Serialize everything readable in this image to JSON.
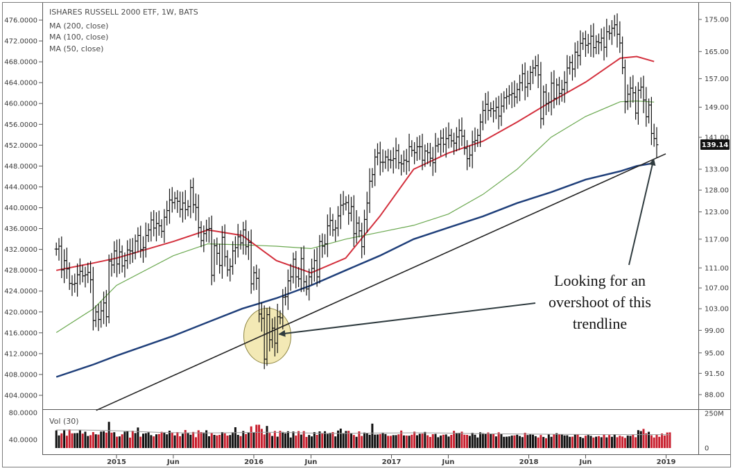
{
  "chart_data": {
    "type": "line",
    "title": "ISHARES RUSSELL 2000 ETF, 1W, BATS",
    "legend": [
      "MA (200, close)",
      "MA (100, close)",
      "MA (50, close)"
    ],
    "volume_label": "Vol (30)",
    "annotation": [
      "Looking for an",
      "overshoot of this",
      "trendline"
    ],
    "last_price_label": "139.14",
    "colors": {
      "price_bars": "#111111",
      "ma50": "#d32f3c",
      "ma100": "#6aa84f",
      "ma200": "#1f3f7a",
      "trendline": "#222222",
      "highlight_fill": "#f3e9b5",
      "vol_up": "#111111",
      "vol_down": "#c8202f",
      "last_price_tag": "#111111"
    },
    "x_tick_labels": [
      "2015",
      "Jun",
      "2016",
      "Jun",
      "2017",
      "Jun",
      "2018",
      "Jun",
      "2019"
    ],
    "x_tick_dates": [
      "2015-01-01",
      "2015-06-01",
      "2016-01-01",
      "2016-06-01",
      "2017-01-01",
      "2017-06-01",
      "2018-01-01",
      "2018-06-01",
      "2019-01-01"
    ],
    "left_axis_ticks": [
      "476.0000",
      "472.0000",
      "468.0000",
      "464.0000",
      "460.0000",
      "456.0000",
      "452.0000",
      "448.0000",
      "444.0000",
      "440.0000",
      "436.0000",
      "432.0000",
      "428.0000",
      "424.0000",
      "420.0000",
      "416.0000",
      "412.0000",
      "408.0000",
      "404.0000"
    ],
    "right_axis_ticks": [
      "175.00",
      "165.00",
      "157.00",
      "149.00",
      "141.00",
      "133.00",
      "128.00",
      "123.00",
      "117.00",
      "111.00",
      "107.00",
      "103.00",
      "99.00",
      "95.00",
      "91.50",
      "88.00"
    ],
    "right_axis_scale": "log",
    "volume_left_ticks": [
      "80.0000",
      "40.0000"
    ],
    "volume_right_ticks": [
      "250M",
      "0"
    ],
    "y_range": [
      85.5,
      177.5
    ],
    "price_series_weekly": {
      "start": "2014-07-25",
      "interval": "1W",
      "close": [
        114.9,
        115.5,
        110.6,
        112.5,
        110.8,
        107.9,
        107.7,
        107.9,
        109.6,
        110.3,
        109.4,
        109.6,
        110.1,
        108.6,
        100.8,
        102.4,
        101.0,
        102.6,
        104.1,
        101.5,
        112.4,
        111.6,
        114.5,
        111.8,
        114.3,
        111.4,
        112.5,
        114.7,
        114.5,
        114.1,
        116.6,
        117.8,
        114.8,
        115.2,
        117.8,
        119.0,
        121.2,
        119.4,
        120.4,
        119.9,
        118.7,
        121.8,
        123.3,
        125.7,
        125.1,
        126.1,
        125.4,
        123.6,
        125.0,
        123.5,
        124.2,
        128.6,
        124.6,
        124.0,
        119.5,
        116.7,
        118.2,
        119.1,
        119.3,
        109.5,
        115.6,
        114.0,
        111.5,
        117.4,
        113.3,
        110.6,
        111.3,
        114.5,
        115.2,
        117.5,
        116.2,
        119.0,
        115.4,
        116.3,
        107.8,
        110.0,
        108.9,
        102.0,
        101.2,
        93.9,
        101.9,
        97.3,
        99.4,
        96.7,
        101.5,
        101.3,
        105.2,
        105.3,
        108.4,
        109.2,
        112.8,
        109.2,
        108.8,
        112.9,
        108.2,
        106.8,
        109.2,
        110.9,
        112.5,
        109.2,
        116.5,
        115.5,
        116.0,
        119.9,
        121.1,
        119.0,
        119.4,
        122.1,
        124.5,
        124.8,
        125.1,
        122.7,
        124.2,
        118.2,
        120.5,
        118.8,
        115.4,
        121.3,
        125.0,
        130.1,
        131.7,
        136.0,
        137.0,
        134.7,
        134.7,
        136.0,
        135.3,
        135.2,
        135.6,
        137.6,
        134.6,
        134.3,
        135.2,
        134.9,
        138.6,
        137.7,
        137.1,
        138.6,
        138.6,
        135.2,
        137.5,
        137.1,
        135.7,
        134.6,
        138.8,
        139.2,
        140.8,
        139.2,
        140.7,
        141.5,
        140.1,
        139.5,
        141.1,
        142.8,
        141.3,
        138.2,
        135.6,
        136.5,
        139.8,
        140.2,
        141.5,
        145.0,
        148.1,
        149.8,
        148.1,
        148.6,
        148.0,
        149.0,
        146.6,
        149.3,
        151.6,
        152.0,
        152.4,
        152.8,
        151.8,
        153.9,
        155.8,
        158.4,
        154.6,
        155.6,
        158.8,
        160.1,
        160.8,
        158.1,
        145.9,
        153.2,
        150.0,
        150.4,
        155.7,
        151.4,
        155.2,
        152.8,
        153.9,
        155.9,
        160.1,
        161.7,
        159.8,
        164.8,
        163.8,
        167.5,
        168.9,
        166.9,
        167.4,
        169.7,
        166.2,
        168.0,
        167.7,
        169.1,
        166.3,
        171.1,
        170.6,
        172.2,
        173.3,
        170.3,
        167.6,
        160.2,
        150.5,
        152.6,
        154.3,
        153.0,
        147.4,
        153.7,
        154.6,
        151.0,
        146.4,
        149.6,
        142.0,
        140.7,
        139.1
      ]
    },
    "moving_averages": {
      "t": [
        "2014-07-25",
        "2014-11-01",
        "2015-01-01",
        "2015-06-01",
        "2015-09-01",
        "2015-12-01",
        "2016-03-01",
        "2016-06-01",
        "2016-09-01",
        "2016-12-01",
        "2017-03-01",
        "2017-06-01",
        "2017-09-01",
        "2017-12-01",
        "2018-03-01",
        "2018-06-01",
        "2018-09-01",
        "2018-10-15",
        "2018-11-30"
      ],
      "MA (50, close)": [
        110.5,
        112.0,
        113.0,
        116.5,
        119.0,
        117.8,
        112.5,
        110.0,
        113.0,
        122.0,
        133.0,
        137.0,
        140.0,
        145.0,
        150.5,
        156.0,
        163.0,
        163.5,
        162.0
      ],
      "MA (100, close)": [
        98.6,
        103.0,
        107.5,
        113.5,
        116.0,
        115.8,
        115.5,
        115.0,
        117.0,
        118.5,
        120.0,
        122.5,
        127.0,
        133.0,
        141.0,
        146.5,
        150.5,
        150.7,
        150.4
      ],
      "MA (200, close)": [
        90.9,
        93.0,
        94.5,
        98.0,
        100.5,
        103.0,
        105.0,
        107.5,
        110.5,
        113.5,
        117.0,
        119.5,
        122.0,
        125.0,
        127.5,
        130.5,
        132.5,
        133.8,
        134.5
      ]
    },
    "trendline": {
      "t": [
        "2014-11-08",
        "2018-12-31"
      ],
      "y": [
        85.5,
        136.8
      ]
    },
    "highlight_circle_center": {
      "t": "2016-02-06",
      "y": 98.0
    },
    "arrow_targets": [
      {
        "t": "2016-03-08",
        "y": 98.3
      },
      {
        "t": "2018-11-29",
        "y": 135.5
      }
    ],
    "volume_M": [
      127,
      91,
      106,
      133,
      89,
      134,
      106,
      107,
      108,
      131,
      104,
      118,
      87,
      93,
      115,
      99,
      97,
      119,
      121,
      111,
      189,
      111,
      114,
      82,
      84,
      99,
      118,
      123,
      75,
      125,
      108,
      148,
      82,
      104,
      107,
      113,
      93,
      84,
      99,
      101,
      117,
      113,
      99,
      125,
      110,
      91,
      115,
      85,
      104,
      130,
      107,
      96,
      116,
      78,
      128,
      115,
      112,
      128,
      85,
      107,
      95,
      91,
      95,
      115,
      106,
      90,
      94,
      114,
      150,
      95,
      86,
      123,
      101,
      113,
      156,
      112,
      168,
      168,
      138,
      98,
      159,
      109,
      87,
      123,
      82,
      124,
      116,
      106,
      121,
      76,
      119,
      90,
      122,
      97,
      122,
      80,
      94,
      84,
      115,
      95,
      120,
      104,
      121,
      102,
      110,
      115,
      84,
      126,
      140,
      107,
      123,
      124,
      105,
      94,
      81,
      120,
      87,
      112,
      109,
      96,
      176,
      97,
      98,
      101,
      111,
      101,
      88,
      88,
      93,
      93,
      99,
      126,
      91,
      90,
      89,
      96,
      118,
      92,
      103,
      104,
      116,
      92,
      80,
      100,
      102,
      78,
      90,
      96,
      98,
      83,
      95,
      124,
      109,
      110,
      118,
      96,
      95,
      88,
      110,
      96,
      76,
      113,
      107,
      102,
      112,
      103,
      104,
      84,
      113,
      101,
      81,
      82,
      84,
      90,
      91,
      96,
      87,
      79,
      110,
      94,
      98,
      96,
      86,
      76,
      94,
      80,
      71,
      98,
      81,
      100,
      107,
      100,
      97,
      91,
      92,
      81,
      82,
      97,
      98,
      80,
      72,
      89,
      94,
      88,
      76,
      82,
      86,
      78,
      99,
      77,
      94,
      81,
      100,
      78,
      89,
      83,
      73,
      90,
      88,
      98,
      78,
      129,
      122,
      138,
      106,
      117,
      92,
      76,
      98,
      81,
      105,
      90,
      112,
      113
    ],
    "volume_avg_M": [
      130,
      130,
      128,
      124,
      118,
      112,
      110,
      109,
      110,
      112,
      114,
      112,
      108,
      105,
      106,
      108,
      109,
      110,
      109,
      106,
      103,
      102,
      101,
      100,
      99,
      98,
      97,
      97,
      97,
      96
    ]
  }
}
